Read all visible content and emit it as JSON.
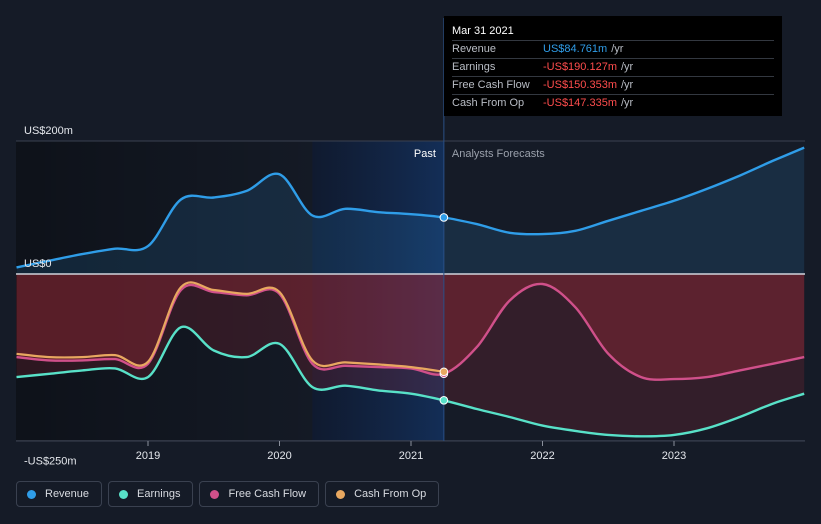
{
  "chart_data": {
    "type": "line",
    "y_labels": [
      "US$200m",
      "US$0",
      "-US$250m"
    ],
    "ylim": [
      -250,
      200
    ],
    "xlim": [
      2018.0,
      2023.99
    ],
    "x_ticks": [
      {
        "value": 2019,
        "label": "2019"
      },
      {
        "value": 2020,
        "label": "2020"
      },
      {
        "value": 2021,
        "label": "2021"
      },
      {
        "value": 2022,
        "label": "2022"
      },
      {
        "value": 2023,
        "label": "2023"
      }
    ],
    "past_label": "Past",
    "forecast_label": "Analysts Forecasts",
    "divider_x": 2021.25,
    "shade_start_x": 2020.25,
    "series": [
      {
        "name": "Revenue",
        "color": "#2f9de8",
        "x": [
          2018.0,
          2018.25,
          2018.5,
          2018.75,
          2019.0,
          2019.25,
          2019.5,
          2019.75,
          2020.0,
          2020.25,
          2020.5,
          2020.75,
          2021.0,
          2021.25,
          2021.5,
          2021.75,
          2022.0,
          2022.25,
          2022.5,
          2022.75,
          2023.0,
          2023.25,
          2023.5,
          2023.75,
          2023.99
        ],
        "y": [
          10,
          20,
          30,
          38,
          42,
          112,
          115,
          125,
          150,
          88,
          98,
          93,
          90,
          85,
          75,
          62,
          60,
          65,
          80,
          95,
          110,
          128,
          148,
          170,
          190
        ]
      },
      {
        "name": "Earnings",
        "color": "#58e1c8",
        "x": [
          2018.0,
          2018.25,
          2018.5,
          2018.75,
          2019.0,
          2019.25,
          2019.5,
          2019.75,
          2020.0,
          2020.25,
          2020.5,
          2020.75,
          2021.0,
          2021.25,
          2021.5,
          2021.75,
          2022.0,
          2022.25,
          2022.5,
          2022.75,
          2023.0,
          2023.25,
          2023.5,
          2023.75,
          2023.99
        ],
        "y": [
          -155,
          -150,
          -145,
          -142,
          -155,
          -80,
          -115,
          -125,
          -105,
          -170,
          -168,
          -175,
          -180,
          -190,
          -203,
          -215,
          -228,
          -236,
          -242,
          -244,
          -242,
          -232,
          -215,
          -195,
          -180
        ]
      },
      {
        "name": "Free Cash Flow",
        "color": "#d0508a",
        "x": [
          2018.0,
          2018.25,
          2018.5,
          2018.75,
          2019.0,
          2019.25,
          2019.5,
          2019.75,
          2020.0,
          2020.25,
          2020.5,
          2020.75,
          2021.0,
          2021.25,
          2021.5,
          2021.75,
          2022.0,
          2022.25,
          2022.5,
          2022.75,
          2023.0,
          2023.25,
          2023.5,
          2023.75,
          2023.99
        ],
        "y": [
          -125,
          -130,
          -130,
          -128,
          -135,
          -24,
          -27,
          -32,
          -30,
          -135,
          -138,
          -140,
          -142,
          -150,
          -110,
          -40,
          -15,
          -50,
          -120,
          -155,
          -158,
          -155,
          -145,
          -135,
          -125
        ]
      },
      {
        "name": "Cash From Op",
        "color": "#e8a860",
        "x": [
          2018.0,
          2018.25,
          2018.5,
          2018.75,
          2019.0,
          2019.25,
          2019.5,
          2019.75,
          2020.0,
          2020.25,
          2020.5,
          2020.75,
          2021.0,
          2021.25
        ],
        "y": [
          -120,
          -125,
          -125,
          -122,
          -132,
          -20,
          -24,
          -30,
          -27,
          -130,
          -133,
          -136,
          -140,
          -147
        ]
      }
    ],
    "end_markers": [
      {
        "series": "Revenue",
        "x": 2021.25,
        "y": 85
      },
      {
        "series": "Earnings",
        "x": 2021.25,
        "y": -190
      },
      {
        "series": "Free Cash Flow",
        "x": 2021.25,
        "y": -150
      },
      {
        "series": "Cash From Op",
        "x": 2021.25,
        "y": -147
      }
    ]
  },
  "tooltip": {
    "date": "Mar 31 2021",
    "rows": [
      {
        "label": "Revenue",
        "value": "US$84.761m",
        "unit": "/yr",
        "color": "blue"
      },
      {
        "label": "Earnings",
        "value": "-US$190.127m",
        "unit": "/yr",
        "color": "red"
      },
      {
        "label": "Free Cash Flow",
        "value": "-US$150.353m",
        "unit": "/yr",
        "color": "red"
      },
      {
        "label": "Cash From Op",
        "value": "-US$147.335m",
        "unit": "/yr",
        "color": "red"
      }
    ]
  },
  "legend": [
    {
      "label": "Revenue",
      "color": "#2f9de8"
    },
    {
      "label": "Earnings",
      "color": "#58e1c8"
    },
    {
      "label": "Free Cash Flow",
      "color": "#d0508a"
    },
    {
      "label": "Cash From Op",
      "color": "#e8a860"
    }
  ]
}
